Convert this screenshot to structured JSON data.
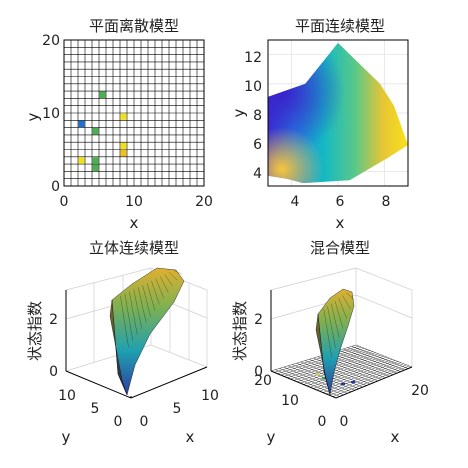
{
  "panels": [
    {
      "title": "平面离散模型",
      "xlabel": "x",
      "ylabel": "y",
      "xticks": [
        "0",
        "10",
        "20"
      ],
      "yticks": [
        "0",
        "10",
        "20"
      ]
    },
    {
      "title": "平面连续模型",
      "xlabel": "x",
      "ylabel": "y",
      "xticks": [
        "4",
        "6",
        "8"
      ],
      "yticks": [
        "4",
        "6",
        "8",
        "10",
        "12"
      ]
    },
    {
      "title": "立体连续模型",
      "xlabel": "x",
      "ylabel": "y",
      "zlabel": "状态指数",
      "xticks": [
        "0",
        "5",
        "10"
      ],
      "yticks": [
        "0",
        "5",
        "10"
      ],
      "zticks": [
        "0",
        "2"
      ]
    },
    {
      "title": "混合模型",
      "xlabel": "x",
      "ylabel": "y",
      "zlabel": "状态指数",
      "xticks": [
        "0",
        "20"
      ],
      "yticks": [
        "0",
        "10",
        "20"
      ],
      "zticks": [
        "0",
        "2"
      ]
    }
  ],
  "chart_data": [
    {
      "type": "heatmap",
      "title": "平面离散模型",
      "xlabel": "x",
      "ylabel": "y",
      "xlim": [
        0,
        20
      ],
      "ylim": [
        0,
        20
      ],
      "grid": true,
      "cells": [
        {
          "x": 2,
          "y": 8,
          "color": "#1f6fd0"
        },
        {
          "x": 5,
          "y": 12,
          "color": "#4caf50"
        },
        {
          "x": 4,
          "y": 7,
          "color": "#4caf50"
        },
        {
          "x": 8,
          "y": 9,
          "color": "#f0e020"
        },
        {
          "x": 2,
          "y": 3,
          "color": "#f0e020"
        },
        {
          "x": 4,
          "y": 2,
          "color": "#4caf50"
        },
        {
          "x": 4,
          "y": 3,
          "color": "#4caf50"
        },
        {
          "x": 8,
          "y": 5,
          "color": "#f0e020"
        },
        {
          "x": 8,
          "y": 4,
          "color": "#f0c020"
        }
      ]
    },
    {
      "type": "heatmap",
      "title": "平面连续模型",
      "xlabel": "x",
      "ylabel": "y",
      "xlim": [
        3,
        9
      ],
      "ylim": [
        3,
        13
      ],
      "grid": true,
      "region": [
        [
          3,
          9.1
        ],
        [
          4.6,
          10
        ],
        [
          6,
          12.8
        ],
        [
          7.8,
          10
        ],
        [
          8.4,
          8.5
        ],
        [
          9,
          5.8
        ],
        [
          8,
          4.8
        ],
        [
          6.5,
          3.4
        ],
        [
          4.5,
          3.2
        ],
        [
          3.8,
          3.5
        ],
        [
          3,
          3.7
        ]
      ],
      "colormap": "parula"
    },
    {
      "type": "area",
      "title": "立体连续模型",
      "xlabel": "x",
      "ylabel": "y",
      "zlabel": "状态指数",
      "xlim": [
        0,
        10
      ],
      "ylim": [
        0,
        12
      ],
      "zlim": [
        0,
        3
      ],
      "grid": true
    },
    {
      "type": "area",
      "title": "混合模型",
      "xlabel": "x",
      "ylabel": "y",
      "zlabel": "状态指数",
      "xlim": [
        0,
        20
      ],
      "ylim": [
        0,
        20
      ],
      "zlim": [
        0,
        3
      ],
      "grid": true
    }
  ]
}
